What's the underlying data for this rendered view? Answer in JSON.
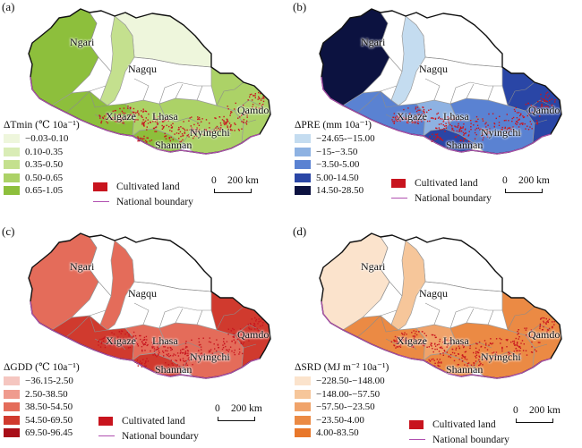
{
  "colors": {
    "cultivated": "#c8141e",
    "boundary": "#b050b0",
    "outline": "#111111"
  },
  "shared": {
    "cities": {
      "ngari": "Ngari",
      "nagqu": "Nagqu",
      "xigaze": "Xigaze",
      "lhasa": "Lhasa",
      "nyingchi": "Nyingchi",
      "qamdo": "Qamdo",
      "shannan": "Shannan"
    },
    "cultivated_label": "Cultivated land",
    "boundary_label": "National boundary",
    "scale_zero": "0",
    "scale_label": "200 km"
  },
  "panels": [
    {
      "label": "(a)",
      "legend_title": "ΔTmin (℃ 10a⁻¹)",
      "classes": [
        {
          "label": "−0.03-0.10",
          "color": "#eef6dc"
        },
        {
          "label": "0.10-0.35",
          "color": "#d9ecb6"
        },
        {
          "label": "0.35-0.50",
          "color": "#c4e08e"
        },
        {
          "label": "0.50-0.65",
          "color": "#acd267"
        },
        {
          "label": "0.65-1.05",
          "color": "#8dbf3c"
        }
      ],
      "region_class": {
        "ngari": 4,
        "nagqu": 2,
        "north": 0,
        "xigaze": 4,
        "lhasa": 3,
        "shannan": 4,
        "nyingchi": 3,
        "qamdo": 3
      }
    },
    {
      "label": "(b)",
      "legend_title": "ΔPRE (mm 10a⁻¹)",
      "classes": [
        {
          "label": "−24.65-−15.00",
          "color": "#c4dcf0"
        },
        {
          "label": "−15-−3.50",
          "color": "#8eb2e2"
        },
        {
          "label": "−3.50-5.00",
          "color": "#5a82d2"
        },
        {
          "label": "5.00-14.50",
          "color": "#2a46a6"
        },
        {
          "label": "14.50-28.50",
          "color": "#0c1240"
        }
      ],
      "region_class": {
        "ngari": 4,
        "nagqu": 0,
        "north": -1,
        "xigaze": 2,
        "lhasa": 1,
        "shannan": 3,
        "nyingchi": 2,
        "qamdo": 3
      }
    },
    {
      "label": "(c)",
      "legend_title": "ΔGDD (℃ 10a⁻¹)",
      "classes": [
        {
          "label": "−36.15-2.50",
          "color": "#f5c6c0"
        },
        {
          "label": "2.50-38.50",
          "color": "#ef9b8e"
        },
        {
          "label": "38.50-54.50",
          "color": "#e46c5a"
        },
        {
          "label": "54.50-69.50",
          "color": "#d03a2e"
        },
        {
          "label": "69.50-96.45",
          "color": "#a80e18"
        }
      ],
      "region_class": {
        "ngari": 2,
        "nagqu": 2,
        "north": -1,
        "xigaze": 3,
        "lhasa": 2,
        "shannan": 3,
        "nyingchi": 2,
        "qamdo": 3
      }
    },
    {
      "label": "(d)",
      "legend_title": "ΔSRD (MJ m⁻² 10a⁻¹)",
      "classes": [
        {
          "label": "−228.50-−148.00",
          "color": "#fbe3cc"
        },
        {
          "label": "−148.00-−57.50",
          "color": "#f6c69a"
        },
        {
          "label": "−57.50-−23.50",
          "color": "#f0a36a"
        },
        {
          "label": "−23.50-4.00",
          "color": "#eb8a44"
        },
        {
          "label": "4.00-83.50",
          "color": "#e8772a"
        }
      ],
      "region_class": {
        "ngari": 0,
        "nagqu": 1,
        "north": -1,
        "xigaze": 3,
        "lhasa": 2,
        "shannan": 3,
        "nyingchi": 3,
        "qamdo": 3
      }
    }
  ]
}
